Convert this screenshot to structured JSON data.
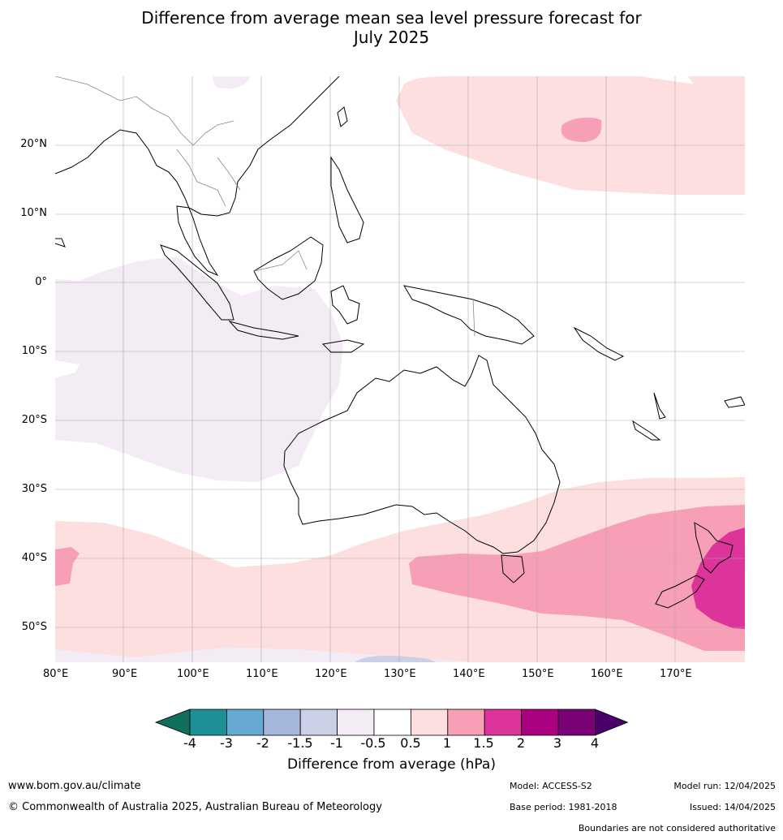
{
  "title_line1": "Difference from average mean sea level pressure forecast for",
  "title_line2": "July 2025",
  "lat_labels": [
    "20°N",
    "10°N",
    "0°",
    "10°S",
    "20°S",
    "30°S",
    "40°S",
    "50°S"
  ],
  "lon_labels": [
    "80°E",
    "90°E",
    "100°E",
    "110°E",
    "120°E",
    "130°E",
    "140°E",
    "150°E",
    "160°E",
    "170°E"
  ],
  "colorbar": {
    "ticks": [
      "-4",
      "-3",
      "-2",
      "-1.5",
      "-1",
      "-0.5",
      "0.5",
      "1",
      "1.5",
      "2",
      "3",
      "4"
    ],
    "colors": [
      "#0f6e5c",
      "#1d8f97",
      "#66a9d2",
      "#a5b7dc",
      "#ccd0e6",
      "#f3ecf5",
      "#ffffff",
      "#fddfdf",
      "#f89fb8",
      "#dc349a",
      "#ab0180",
      "#7b0177",
      "#49006a"
    ],
    "label": "Difference from average (hPa)"
  },
  "footer": {
    "website": "www.bom.gov.au/climate",
    "copyright": "© Commonwealth of Australia 2025, Australian Bureau of Meteorology",
    "model": "Model: ACCESS-S2",
    "base_period": "Base period: 1981-2018",
    "model_run": "Model run: 12/04/2025",
    "issued": "Issued: 14/04/2025",
    "disclaimer": "Boundaries are not considered authoritative"
  }
}
